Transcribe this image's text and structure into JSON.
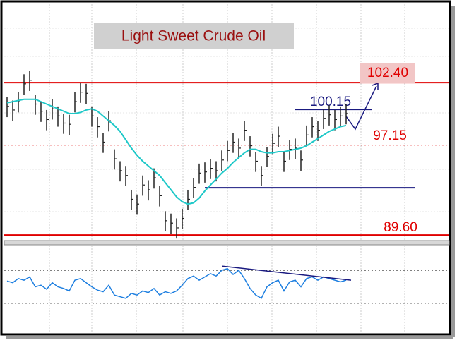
{
  "chart_data": {
    "type": "ohlc",
    "title": "Light Sweet Crude Oil",
    "ylim": [
      89.19,
      108.75
    ],
    "bar_color": "#222222",
    "close": [
      100.4,
      100.1,
      100.8,
      102.3,
      102.6,
      100.6,
      100.0,
      99.3,
      100.2,
      99.6,
      99.0,
      98.9,
      100.8,
      101.6,
      101.5,
      99.6,
      98.7,
      97.4,
      99.2,
      96.0,
      95.0,
      94.6,
      92.6,
      92.2,
      93.8,
      93.4,
      94.4,
      92.9,
      90.8,
      90.6,
      90.2,
      91.0,
      92.6,
      93.6,
      94.8,
      94.9,
      95.2,
      95.0,
      95.9,
      96.7,
      97.4,
      96.9,
      98.4,
      97.1,
      95.8,
      94.6,
      96.2,
      97.3,
      97.9,
      95.8,
      96.8,
      96.9,
      95.9,
      98.0,
      98.7,
      98.4,
      99.4,
      99.7,
      99.3,
      99.6,
      99.8
    ],
    "high": [
      101.2,
      100.9,
      101.6,
      103.1,
      103.4,
      101.4,
      100.8,
      100.1,
      101.0,
      100.4,
      99.8,
      99.7,
      101.6,
      102.4,
      102.3,
      100.4,
      99.5,
      98.2,
      100.0,
      96.8,
      95.8,
      95.4,
      93.4,
      93.0,
      94.6,
      94.2,
      95.2,
      93.7,
      91.6,
      91.4,
      91.0,
      91.8,
      93.4,
      94.4,
      95.6,
      95.7,
      96.0,
      95.8,
      96.7,
      97.5,
      98.2,
      97.7,
      99.2,
      97.9,
      96.6,
      95.4,
      97.0,
      98.1,
      98.7,
      96.6,
      97.6,
      97.7,
      96.7,
      98.8,
      99.5,
      99.2,
      100.2,
      100.5,
      100.1,
      100.4,
      100.6
    ],
    "low": [
      99.5,
      99.2,
      99.9,
      101.4,
      101.7,
      99.7,
      99.1,
      98.4,
      99.3,
      98.7,
      98.1,
      98.0,
      99.9,
      100.7,
      100.6,
      98.7,
      97.8,
      96.5,
      98.3,
      95.1,
      94.1,
      93.7,
      91.7,
      91.3,
      92.9,
      92.5,
      93.5,
      92.0,
      89.9,
      89.7,
      89.3,
      90.1,
      91.7,
      92.7,
      93.9,
      94.0,
      94.3,
      94.1,
      95.0,
      95.8,
      96.5,
      96.0,
      97.5,
      96.2,
      94.9,
      93.7,
      95.3,
      96.4,
      97.0,
      94.9,
      95.9,
      96.0,
      95.0,
      97.1,
      97.8,
      97.5,
      98.5,
      98.8,
      98.4,
      98.7,
      98.9
    ],
    "moving_average": {
      "color": "#1ec8c8",
      "values": [
        100.7,
        100.8,
        100.9,
        101.0,
        101.0,
        101.0,
        100.8,
        100.6,
        100.4,
        100.2,
        100.0,
        99.8,
        99.8,
        99.9,
        100.1,
        100.2,
        100.0,
        99.6,
        99.2,
        98.8,
        98.3,
        97.6,
        96.9,
        96.3,
        95.8,
        95.4,
        95.0,
        94.6,
        94.0,
        93.4,
        92.8,
        92.4,
        92.2,
        92.3,
        92.7,
        93.3,
        93.8,
        94.3,
        94.8,
        95.2,
        95.7,
        96.1,
        96.5,
        96.8,
        96.8,
        96.6,
        96.5,
        96.5,
        96.6,
        96.6,
        96.7,
        96.8,
        96.9,
        97.1,
        97.4,
        97.7,
        98.0,
        98.3,
        98.5,
        98.7,
        98.8
      ]
    },
    "levels": [
      {
        "value": 102.4,
        "label": "102.40",
        "color": "#e00000",
        "style": "solid"
      },
      {
        "value": 100.15,
        "label": "100.15",
        "color": "#1a1a80",
        "style": "solid"
      },
      {
        "value": 97.15,
        "label": "97.15",
        "color": "#e00000",
        "style": "dotted"
      },
      {
        "value": 93.57,
        "color": "#1a1a80",
        "style": "solid"
      },
      {
        "value": 89.6,
        "label": "89.60",
        "color": "#e00000",
        "style": "solid"
      }
    ],
    "oscillator": {
      "color": "#1e7fe0",
      "ylim": [
        0,
        100
      ],
      "levels": [
        30,
        70
      ],
      "values": [
        57,
        55,
        60,
        58,
        62,
        50,
        52,
        47,
        55,
        50,
        48,
        45,
        58,
        60,
        55,
        50,
        46,
        44,
        52,
        40,
        38,
        36,
        42,
        40,
        45,
        43,
        48,
        40,
        44,
        42,
        45,
        52,
        60,
        63,
        58,
        62,
        66,
        63,
        70,
        72,
        65,
        70,
        60,
        48,
        40,
        36,
        50,
        55,
        58,
        45,
        56,
        58,
        50,
        60,
        62,
        58,
        62,
        60,
        58,
        56,
        58
      ],
      "trendline": {
        "color": "#1a1a80",
        "values": [
          75,
          58
        ]
      }
    }
  }
}
